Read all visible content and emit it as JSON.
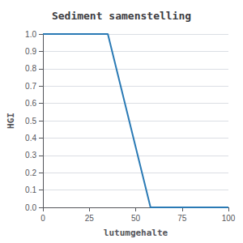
{
  "chart_data": {
    "type": "line",
    "title": "Sediment samenstelling",
    "xlabel": "lutumgehalte",
    "ylabel": "HGI",
    "x": [
      0,
      35,
      58,
      100
    ],
    "values": [
      1.0,
      1.0,
      0.0,
      0.0
    ],
    "color": "#2a7ab5",
    "xlim": [
      0,
      100
    ],
    "xticks": [
      0,
      25,
      50,
      75,
      100
    ],
    "ylim": [
      0.0,
      1.0
    ],
    "yticks": [
      {
        "value": 0.0,
        "label": "0.0"
      },
      0.1,
      0.2,
      0.3,
      0.4,
      0.5,
      0.6,
      0.7,
      0.8,
      0.9,
      {
        "value": 1.0,
        "label": "1.0"
      }
    ],
    "grid": "y"
  }
}
